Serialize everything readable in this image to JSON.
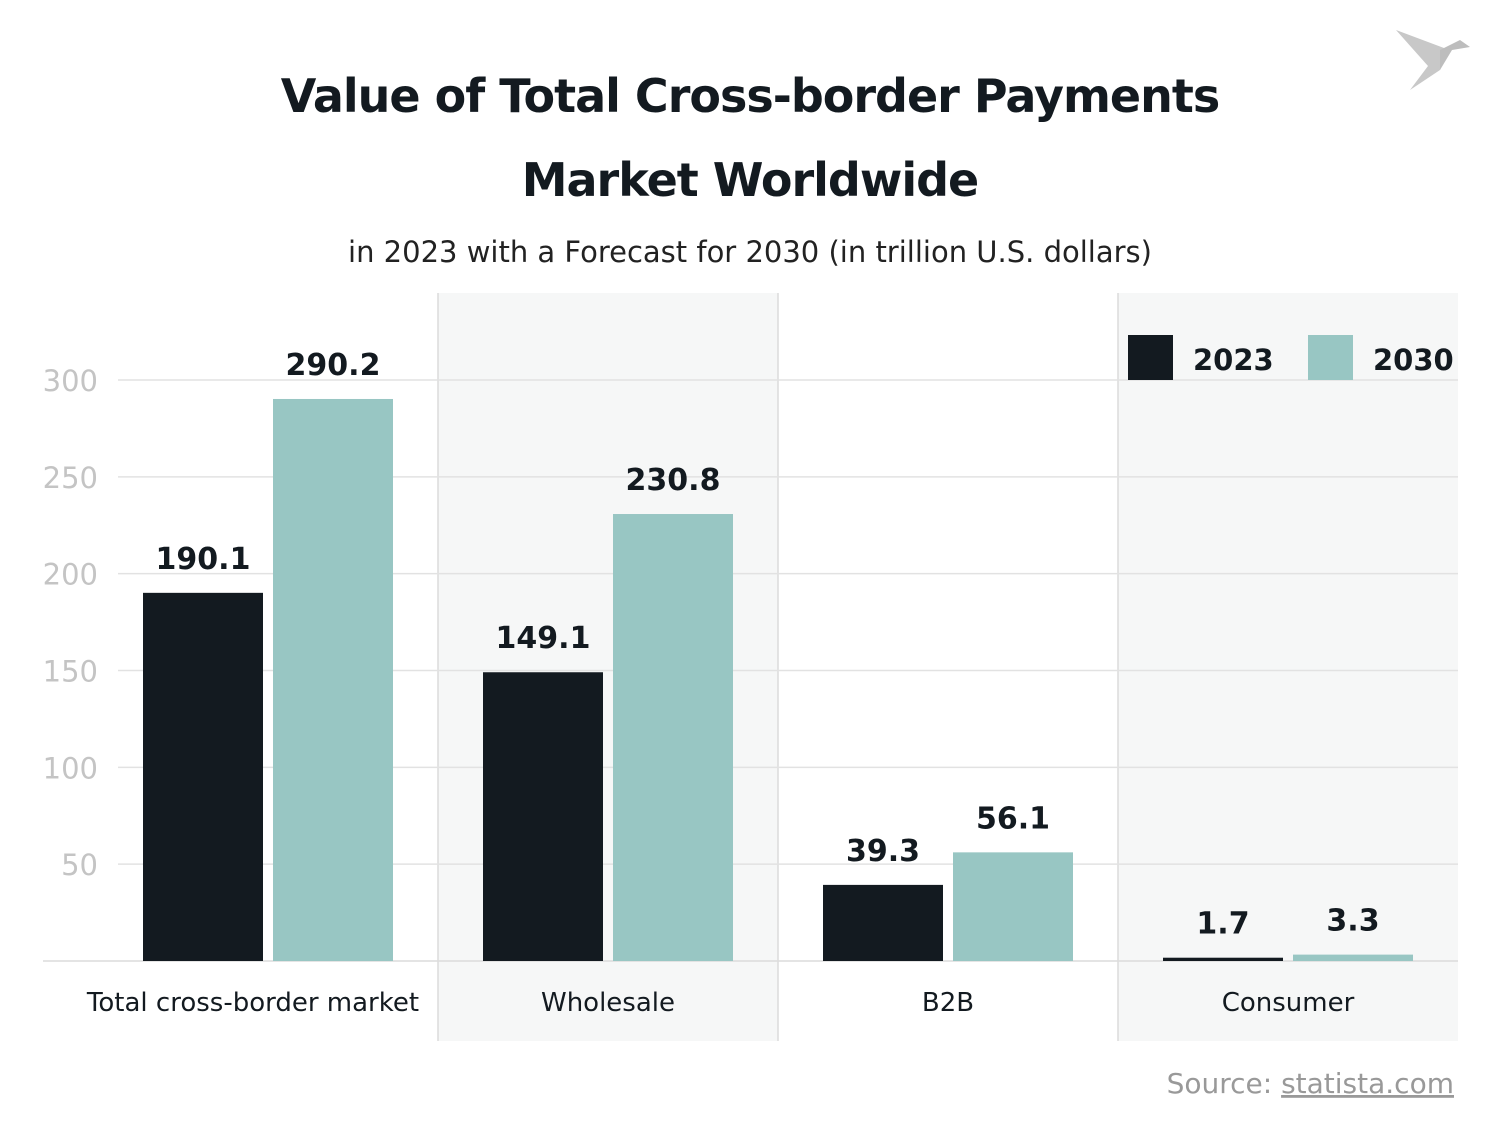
{
  "chart_data": {
    "type": "bar",
    "title": "Value of Total Cross-border Payments Market Worldwide",
    "title_lines": [
      "Value of Total Cross-border Payments",
      "Market Worldwide"
    ],
    "subtitle": "in 2023 with a Forecast for 2030 (in trillion U.S. dollars)",
    "categories": [
      "Total cross-border market",
      "Wholesale",
      "B2B",
      "Consumer"
    ],
    "series": [
      {
        "name": "2023",
        "values": [
          190.1,
          149.1,
          39.3,
          1.7
        ],
        "color": "#131a20"
      },
      {
        "name": "2030",
        "values": [
          290.2,
          230.8,
          56.1,
          3.3
        ],
        "color": "#98c6c3"
      }
    ],
    "yticks": [
      50,
      100,
      150,
      200,
      250,
      300
    ],
    "ylim": [
      0,
      300
    ],
    "grid": true,
    "legend": "top-right",
    "source_label": "Source: ",
    "source_link": "statista.com"
  }
}
